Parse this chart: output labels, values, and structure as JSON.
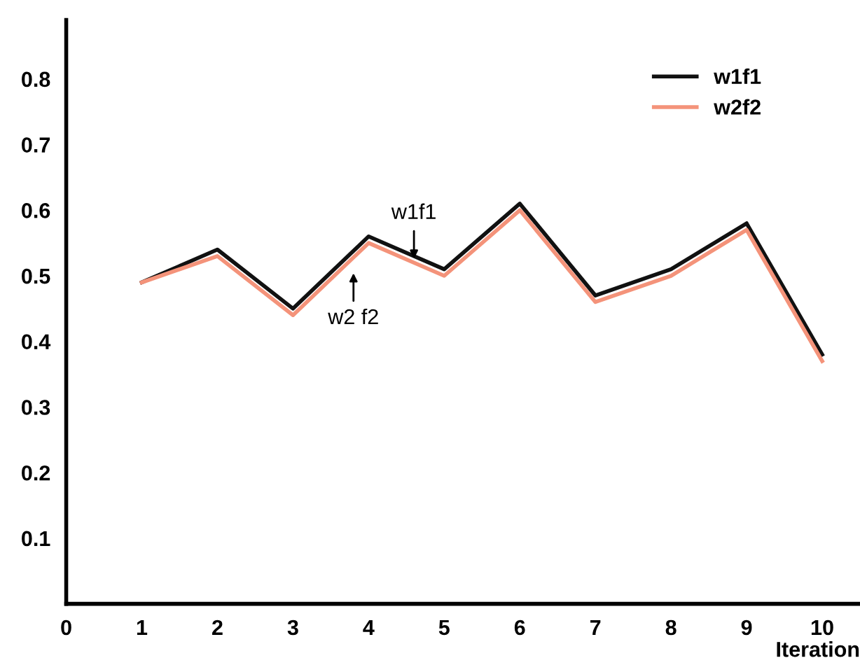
{
  "chart_data": {
    "type": "line",
    "xlabel": "Iteration",
    "x": [
      1,
      2,
      3,
      4,
      5,
      6,
      7,
      8,
      9,
      10
    ],
    "series": [
      {
        "name": "w1f1",
        "color": "#111111",
        "values": [
          0.49,
          0.54,
          0.45,
          0.56,
          0.51,
          0.61,
          0.47,
          0.51,
          0.58,
          0.38
        ]
      },
      {
        "name": "w2f2",
        "color": "#f4937a",
        "values": [
          0.49,
          0.53,
          0.44,
          0.55,
          0.5,
          0.6,
          0.46,
          0.5,
          0.57,
          0.37
        ]
      }
    ],
    "xlim": [
      0,
      10.5
    ],
    "ylim": [
      0,
      0.89
    ],
    "xticks": [
      0,
      1,
      2,
      3,
      4,
      5,
      6,
      7,
      8,
      9,
      10
    ],
    "yticks": [
      0.1,
      0.2,
      0.3,
      0.4,
      0.5,
      0.6,
      0.7,
      0.8
    ],
    "annotations": [
      {
        "text": "w1f1",
        "x": 4.6,
        "y": 0.52
      },
      {
        "text": "w2 f2",
        "x": 3.8,
        "y": 0.51
      }
    ],
    "legend": "top right",
    "grid": false,
    "marker": "none",
    "line_style": "solid"
  }
}
